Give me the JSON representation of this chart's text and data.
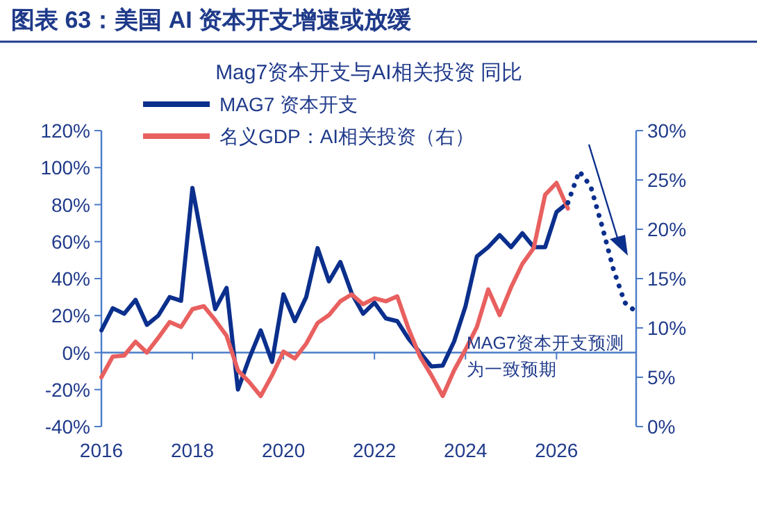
{
  "chart_data": {
    "type": "line",
    "title": "图表 63：美国 AI 资本开支增速或放缓",
    "subtitle": "Mag7资本开支与AI相关投资 同比",
    "x": [
      2016,
      2016.25,
      2016.5,
      2016.75,
      2017,
      2017.25,
      2017.5,
      2017.75,
      2018,
      2018.25,
      2018.5,
      2018.75,
      2019,
      2019.25,
      2019.5,
      2019.75,
      2020,
      2020.25,
      2020.5,
      2020.75,
      2021,
      2021.25,
      2021.5,
      2021.75,
      2022,
      2022.25,
      2022.5,
      2022.75,
      2023,
      2023.25,
      2023.5,
      2023.75,
      2024,
      2024.25,
      2024.5,
      2024.75,
      2025,
      2025.25,
      2025.5,
      2025.75,
      2026,
      2026.25
    ],
    "series": [
      {
        "name": "MAG7 资本开支",
        "color": "#0b2f8c",
        "values": [
          12,
          24,
          21,
          28.5,
          15,
          20,
          30,
          28,
          89,
          56,
          23.5,
          35,
          -20,
          -3,
          12,
          -5,
          31.5,
          17,
          30,
          56.5,
          38.5,
          49,
          32,
          21,
          27,
          18.5,
          17,
          7.5,
          0,
          -7.5,
          -7,
          6,
          25,
          52,
          57,
          63.5,
          57,
          64.5,
          57,
          57,
          76,
          81
        ]
      },
      {
        "name": "名义GDP：AI相关投资（右）",
        "color": "#e8605f",
        "axis": "y2",
        "values": [
          5,
          7.1,
          7.2,
          8.6,
          7.5,
          9,
          10.6,
          10.1,
          11.9,
          12.2,
          10.8,
          9.2,
          5.7,
          4.5,
          3.1,
          5.2,
          7.6,
          6.9,
          8.4,
          10.5,
          11.3,
          12.7,
          13.4,
          12.4,
          13,
          12.7,
          13.2,
          9.9,
          7.1,
          5.2,
          3.1,
          5.7,
          7.8,
          10.1,
          13.9,
          11.3,
          14.1,
          16.5,
          18.1,
          23.5,
          24.7,
          22.1
        ]
      },
      {
        "color": "#0b2f8c",
        "line_style": "dotted",
        "x": [
          2026.25,
          2026.5,
          2026.75,
          2027,
          2027.25,
          2027.5,
          2027.75
        ],
        "values": [
          81,
          98,
          90,
          68.5,
          45,
          27,
          22
        ]
      }
    ],
    "xlim": [
      2016,
      2027.75
    ],
    "xticks": [
      2016,
      2018,
      2020,
      2022,
      2024,
      2026
    ],
    "ylim": [
      -40,
      120
    ],
    "yticks": [
      {
        "value": -40,
        "label": "-40%"
      },
      {
        "value": -20,
        "label": "-20%"
      },
      {
        "value": 0,
        "label": "0%"
      },
      {
        "value": 20,
        "label": "20%"
      },
      {
        "value": 40,
        "label": "40%"
      },
      {
        "value": 60,
        "label": "60%"
      },
      {
        "value": 80,
        "label": "80%"
      },
      {
        "value": 100,
        "label": "100%"
      },
      {
        "value": 120,
        "label": "120%"
      }
    ],
    "y2lim": [
      0,
      30
    ],
    "y2ticks": [
      {
        "value": 0,
        "label": "0%"
      },
      {
        "value": 5,
        "label": "5%"
      },
      {
        "value": 10,
        "label": "10%"
      },
      {
        "value": 15,
        "label": "15%"
      },
      {
        "value": 20,
        "label": "20%"
      },
      {
        "value": 25,
        "label": "25%"
      },
      {
        "value": 30,
        "label": "30%"
      }
    ],
    "legend": "top left",
    "grid": false,
    "ref_lines": [
      {
        "axis": "y",
        "value": 0,
        "color": "#4a7bc8"
      }
    ],
    "annotations": [
      "MAG7资本开支预测为一致预期"
    ]
  }
}
